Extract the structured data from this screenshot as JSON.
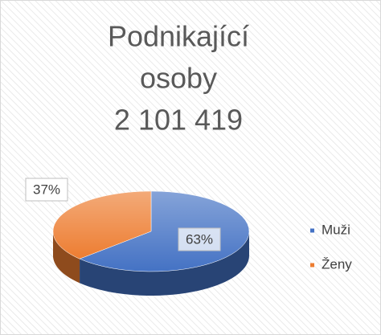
{
  "chart_data": {
    "type": "pie",
    "title": [
      "Podnikající",
      "osoby",
      "2 101 419"
    ],
    "categories": [
      "Muži",
      "Ženy"
    ],
    "values": [
      63,
      37
    ],
    "value_labels": [
      "63%",
      "37%"
    ],
    "colors": [
      "#4472c4",
      "#ed7d31"
    ],
    "legend": "right"
  }
}
